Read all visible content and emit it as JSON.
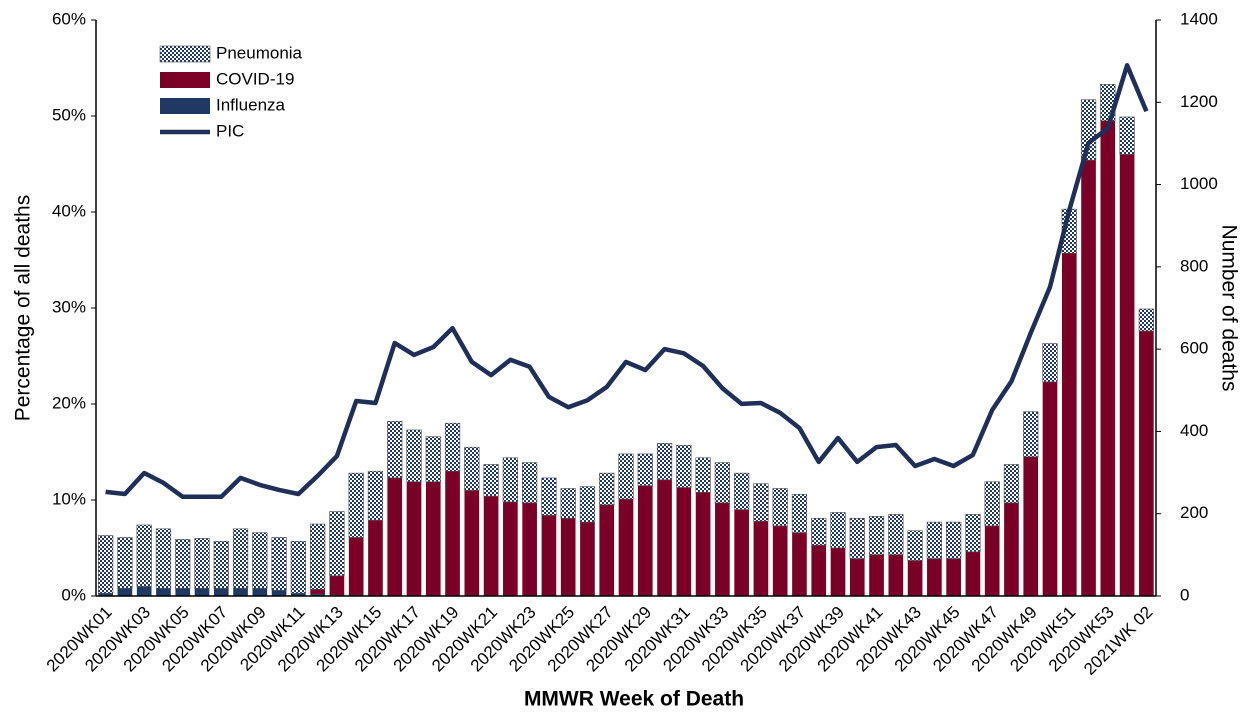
{
  "chart_data": {
    "type": "bar",
    "stacked": true,
    "x_label": "MMWR Week of Death",
    "y_label": "Percentage of all deaths",
    "y2_label": "Number of deaths",
    "legend": "upper-left",
    "categories": [
      "2020WK01",
      null,
      "2020WK03",
      null,
      "2020WK05",
      null,
      "2020WK07",
      null,
      "2020WK09",
      null,
      "2020WK11",
      null,
      "2020WK13",
      null,
      "2020WK15",
      null,
      "2020WK17",
      null,
      "2020WK19",
      null,
      "2020WK21",
      null,
      "2020WK23",
      null,
      "2020WK25",
      null,
      "2020WK27",
      null,
      "2020WK29",
      null,
      "2020WK31",
      null,
      "2020WK33",
      null,
      "2020WK35",
      null,
      "2020WK37",
      null,
      "2020WK39",
      null,
      "2020WK41",
      null,
      "2020WK43",
      null,
      "2020WK45",
      null,
      "2020WK47",
      null,
      "2020WK49",
      null,
      "2020WK51",
      null,
      "2020WK53",
      null,
      "2021WK 02"
    ],
    "series": [
      {
        "name": "Influenza",
        "color": "#1f3864",
        "values": [
          0.3,
          0.8,
          1.0,
          0.8,
          0.8,
          0.8,
          0.8,
          0.8,
          0.8,
          0.6,
          0.3,
          0.2,
          0.1,
          0.1,
          0,
          0,
          0,
          0,
          0,
          0,
          0,
          0,
          0,
          0,
          0,
          0,
          0,
          0,
          0,
          0,
          0,
          0,
          0,
          0,
          0,
          0,
          0,
          0,
          0,
          0,
          0,
          0,
          0,
          0,
          0,
          0,
          0,
          0,
          0,
          0,
          0,
          0,
          0,
          0,
          0
        ]
      },
      {
        "name": "COVID-19",
        "color": "#7b0028",
        "values": [
          0,
          0,
          0,
          0,
          0,
          0,
          0,
          0,
          0,
          0,
          0,
          0.5,
          2.0,
          6.0,
          7.9,
          12.3,
          11.9,
          11.9,
          13.0,
          11.0,
          10.4,
          9.8,
          9.7,
          8.4,
          8.1,
          7.7,
          9.5,
          10.1,
          11.5,
          12.1,
          11.3,
          10.8,
          9.7,
          9.0,
          7.8,
          7.3,
          6.6,
          5.3,
          5.0,
          3.9,
          4.3,
          4.3,
          3.7,
          3.9,
          3.9,
          4.6,
          7.3,
          9.7,
          14.5,
          22.3,
          35.7,
          45.4,
          49.5,
          46.0,
          27.6
        ]
      },
      {
        "name": "Pneumonia",
        "color": "#1f3864",
        "pattern": "checkered",
        "values": [
          6.0,
          5.3,
          6.4,
          6.2,
          5.1,
          5.2,
          4.9,
          6.2,
          5.8,
          5.5,
          5.4,
          6.8,
          6.7,
          6.7,
          5.1,
          5.9,
          5.4,
          4.7,
          5.0,
          4.5,
          3.3,
          4.6,
          4.2,
          3.9,
          3.1,
          3.7,
          3.3,
          4.7,
          3.3,
          3.8,
          4.4,
          3.6,
          4.2,
          3.8,
          3.9,
          3.9,
          4.0,
          2.8,
          3.7,
          4.2,
          4.0,
          4.2,
          3.1,
          3.8,
          3.8,
          3.9,
          4.6,
          4.0,
          4.7,
          4.0,
          4.6,
          6.3,
          3.8,
          3.9,
          2.3
        ]
      },
      {
        "name": "PIC",
        "color": "#1f2f57",
        "type": "line",
        "axis": "y2",
        "values": [
          253,
          248,
          299,
          275,
          241,
          241,
          241,
          287,
          270,
          258,
          248,
          292,
          340,
          474,
          469,
          615,
          586,
          605,
          651,
          569,
          537,
          574,
          557,
          484,
          459,
          476,
          508,
          569,
          549,
          600,
          590,
          559,
          505,
          467,
          469,
          445,
          408,
          326,
          384,
          326,
          362,
          367,
          316,
          333,
          316,
          343,
          452,
          522,
          639,
          751,
          938,
          1101,
          1137,
          1290,
          1178
        ]
      }
    ],
    "ylim": [
      0,
      60
    ],
    "yticks": [
      {
        "value": 0,
        "label": "0%"
      },
      {
        "value": 10,
        "label": "10%"
      },
      {
        "value": 20,
        "label": "20%"
      },
      {
        "value": 30,
        "label": "30%"
      },
      {
        "value": 40,
        "label": "40%"
      },
      {
        "value": 50,
        "label": "50%"
      },
      {
        "value": 60,
        "label": "60%"
      }
    ],
    "y2lim": [
      0,
      1400
    ],
    "y2ticks": [
      0,
      200,
      400,
      600,
      800,
      1000,
      1200,
      1400
    ]
  }
}
